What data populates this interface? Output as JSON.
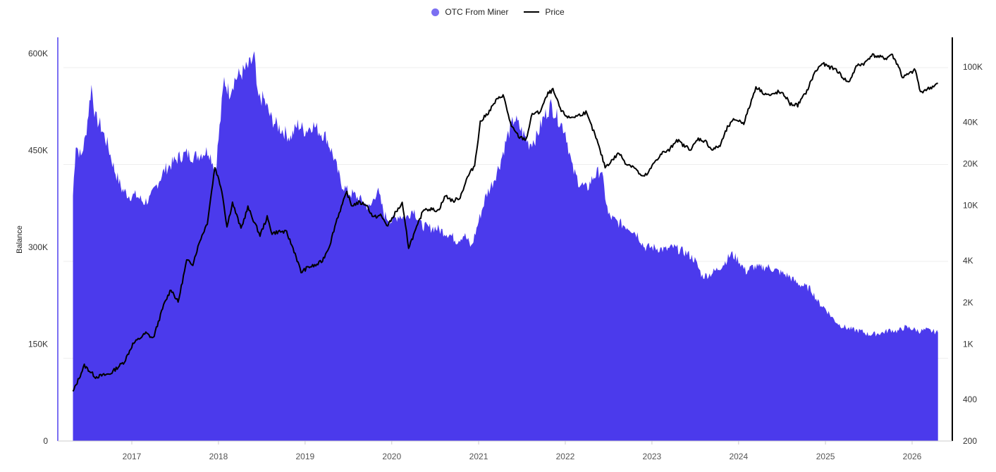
{
  "legend": {
    "series_1": "OTC From Miner",
    "series_2": "Price"
  },
  "colors": {
    "balance": "#4b3aec",
    "balance_axis": "#7b6ff2",
    "price": "#000000",
    "grid": "#eeeeee"
  },
  "chart_data": {
    "type": "area",
    "ylabel_left": "Balance",
    "ylabel_right": "",
    "x_ticks": [
      "2017",
      "2018",
      "2019",
      "2020",
      "2021",
      "2022",
      "2023",
      "2024",
      "2025",
      "2026"
    ],
    "y_left_ticks": [
      "0",
      "150K",
      "300K",
      "450K",
      "600K"
    ],
    "y_left_lim": [
      0,
      600000
    ],
    "y_right_ticks": [
      "200",
      "400",
      "1K",
      "2K",
      "4K",
      "10K",
      "20K",
      "40K",
      "100K"
    ],
    "y_right_scale": "log",
    "y_right_lim": [
      200,
      150000
    ],
    "grid": true,
    "legend_position": "top-center",
    "series": [
      {
        "name": "OTC From Miner",
        "axis": "left",
        "type": "area",
        "points": [
          [
            "2016-04-28",
            380000
          ],
          [
            "2016-05-10",
            460000
          ],
          [
            "2016-06-01",
            440000
          ],
          [
            "2016-06-20",
            470000
          ],
          [
            "2016-07-15",
            550000
          ],
          [
            "2016-08-01",
            500000
          ],
          [
            "2016-08-20",
            490000
          ],
          [
            "2016-09-20",
            460000
          ],
          [
            "2016-10-20",
            420000
          ],
          [
            "2016-11-20",
            390000
          ],
          [
            "2016-12-20",
            380000
          ],
          [
            "2017-01-20",
            380000
          ],
          [
            "2017-02-20",
            370000
          ],
          [
            "2017-03-20",
            375000
          ],
          [
            "2017-04-20",
            400000
          ],
          [
            "2017-05-20",
            420000
          ],
          [
            "2017-06-20",
            430000
          ],
          [
            "2017-07-20",
            440000
          ],
          [
            "2017-08-20",
            445000
          ],
          [
            "2017-09-20",
            440000
          ],
          [
            "2017-10-20",
            445000
          ],
          [
            "2017-11-20",
            450000
          ],
          [
            "2017-12-20",
            420000
          ],
          [
            "2018-01-10",
            500000
          ],
          [
            "2018-01-25",
            560000
          ],
          [
            "2018-02-15",
            540000
          ],
          [
            "2018-03-10",
            560000
          ],
          [
            "2018-04-10",
            570000
          ],
          [
            "2018-05-10",
            580000
          ],
          [
            "2018-06-01",
            595000
          ],
          [
            "2018-06-15",
            530000
          ],
          [
            "2018-07-10",
            530000
          ],
          [
            "2018-08-10",
            500000
          ],
          [
            "2018-09-01",
            490000
          ],
          [
            "2018-10-01",
            480000
          ],
          [
            "2018-11-01",
            470000
          ],
          [
            "2018-12-01",
            490000
          ],
          [
            "2019-01-01",
            480000
          ],
          [
            "2019-02-01",
            490000
          ],
          [
            "2019-03-01",
            480000
          ],
          [
            "2019-04-01",
            470000
          ],
          [
            "2019-05-01",
            440000
          ],
          [
            "2019-06-01",
            400000
          ],
          [
            "2019-07-01",
            385000
          ],
          [
            "2019-08-01",
            380000
          ],
          [
            "2019-09-01",
            370000
          ],
          [
            "2019-10-01",
            360000
          ],
          [
            "2019-11-01",
            390000
          ],
          [
            "2019-12-01",
            350000
          ],
          [
            "2020-01-01",
            340000
          ],
          [
            "2020-02-01",
            350000
          ],
          [
            "2020-03-01",
            345000
          ],
          [
            "2020-04-01",
            360000
          ],
          [
            "2020-05-01",
            335000
          ],
          [
            "2020-06-01",
            330000
          ],
          [
            "2020-07-01",
            330000
          ],
          [
            "2020-08-01",
            325000
          ],
          [
            "2020-09-01",
            320000
          ],
          [
            "2020-10-01",
            310000
          ],
          [
            "2020-11-01",
            320000
          ],
          [
            "2020-12-01",
            300000
          ],
          [
            "2021-01-01",
            340000
          ],
          [
            "2021-02-01",
            380000
          ],
          [
            "2021-03-01",
            400000
          ],
          [
            "2021-04-01",
            430000
          ],
          [
            "2021-05-01",
            470000
          ],
          [
            "2021-06-01",
            500000
          ],
          [
            "2021-07-01",
            480000
          ],
          [
            "2021-08-01",
            460000
          ],
          [
            "2021-09-01",
            470000
          ],
          [
            "2021-10-01",
            500000
          ],
          [
            "2021-11-01",
            520000
          ],
          [
            "2021-12-01",
            500000
          ],
          [
            "2022-01-01",
            480000
          ],
          [
            "2022-02-01",
            420000
          ],
          [
            "2022-03-01",
            400000
          ],
          [
            "2022-04-01",
            390000
          ],
          [
            "2022-05-01",
            410000
          ],
          [
            "2022-06-01",
            420000
          ],
          [
            "2022-07-01",
            350000
          ],
          [
            "2022-08-01",
            340000
          ],
          [
            "2022-09-01",
            335000
          ],
          [
            "2022-10-01",
            330000
          ],
          [
            "2022-11-01",
            320000
          ],
          [
            "2022-12-01",
            300000
          ],
          [
            "2023-01-01",
            300000
          ],
          [
            "2023-02-01",
            298000
          ],
          [
            "2023-03-01",
            296000
          ],
          [
            "2023-04-01",
            300000
          ],
          [
            "2023-05-01",
            295000
          ],
          [
            "2023-06-01",
            290000
          ],
          [
            "2023-07-01",
            280000
          ],
          [
            "2023-08-01",
            255000
          ],
          [
            "2023-09-01",
            258000
          ],
          [
            "2023-10-01",
            265000
          ],
          [
            "2023-11-01",
            275000
          ],
          [
            "2023-12-01",
            290000
          ],
          [
            "2024-01-01",
            280000
          ],
          [
            "2024-02-01",
            262000
          ],
          [
            "2024-03-01",
            270000
          ],
          [
            "2024-04-01",
            268000
          ],
          [
            "2024-05-01",
            270000
          ],
          [
            "2024-06-01",
            265000
          ],
          [
            "2024-07-01",
            260000
          ],
          [
            "2024-08-01",
            255000
          ],
          [
            "2024-09-01",
            245000
          ],
          [
            "2024-10-01",
            240000
          ],
          [
            "2024-11-01",
            235000
          ],
          [
            "2024-12-01",
            215000
          ],
          [
            "2025-01-01",
            205000
          ],
          [
            "2025-02-01",
            190000
          ],
          [
            "2025-03-01",
            180000
          ],
          [
            "2025-04-01",
            175000
          ],
          [
            "2025-05-01",
            172000
          ],
          [
            "2025-06-01",
            170000
          ],
          [
            "2025-07-01",
            165000
          ],
          [
            "2025-08-01",
            166000
          ],
          [
            "2025-09-01",
            168000
          ],
          [
            "2025-10-01",
            172000
          ],
          [
            "2025-11-01",
            170000
          ],
          [
            "2025-12-01",
            176000
          ],
          [
            "2026-01-01",
            174000
          ],
          [
            "2026-02-01",
            170000
          ],
          [
            "2026-03-01",
            172000
          ],
          [
            "2026-04-20",
            168000
          ]
        ]
      },
      {
        "name": "Price",
        "axis": "right",
        "type": "line",
        "points": [
          [
            "2016-04-28",
            450
          ],
          [
            "2016-06-15",
            700
          ],
          [
            "2016-08-01",
            580
          ],
          [
            "2016-10-01",
            610
          ],
          [
            "2016-12-01",
            750
          ],
          [
            "2017-01-05",
            1000
          ],
          [
            "2017-03-01",
            1200
          ],
          [
            "2017-04-01",
            1100
          ],
          [
            "2017-05-15",
            1900
          ],
          [
            "2017-06-15",
            2500
          ],
          [
            "2017-07-15",
            2000
          ],
          [
            "2017-08-20",
            4000
          ],
          [
            "2017-09-15",
            3800
          ],
          [
            "2017-10-15",
            5600
          ],
          [
            "2017-11-15",
            7500
          ],
          [
            "2017-12-17",
            19000
          ],
          [
            "2018-01-15",
            13000
          ],
          [
            "2018-02-06",
            7000
          ],
          [
            "2018-03-01",
            10500
          ],
          [
            "2018-04-06",
            6800
          ],
          [
            "2018-05-05",
            9700
          ],
          [
            "2018-06-25",
            6100
          ],
          [
            "2018-07-25",
            8200
          ],
          [
            "2018-08-15",
            6300
          ],
          [
            "2018-09-15",
            6500
          ],
          [
            "2018-10-15",
            6400
          ],
          [
            "2018-11-20",
            4500
          ],
          [
            "2018-12-15",
            3300
          ],
          [
            "2019-01-15",
            3600
          ],
          [
            "2019-02-15",
            3700
          ],
          [
            "2019-03-15",
            4000
          ],
          [
            "2019-04-15",
            5200
          ],
          [
            "2019-05-15",
            8000
          ],
          [
            "2019-06-26",
            12500
          ],
          [
            "2019-07-15",
            10000
          ],
          [
            "2019-08-15",
            10500
          ],
          [
            "2019-09-15",
            10200
          ],
          [
            "2019-10-15",
            8200
          ],
          [
            "2019-11-15",
            8500
          ],
          [
            "2019-12-15",
            7100
          ],
          [
            "2020-01-15",
            8800
          ],
          [
            "2020-02-14",
            10300
          ],
          [
            "2020-03-12",
            5000
          ],
          [
            "2020-04-15",
            6900
          ],
          [
            "2020-05-15",
            9500
          ],
          [
            "2020-06-15",
            9400
          ],
          [
            "2020-07-15",
            9200
          ],
          [
            "2020-08-15",
            11800
          ],
          [
            "2020-09-15",
            10700
          ],
          [
            "2020-10-15",
            11500
          ],
          [
            "2020-11-15",
            16000
          ],
          [
            "2020-12-15",
            19500
          ],
          [
            "2021-01-08",
            40000
          ],
          [
            "2021-02-15",
            48000
          ],
          [
            "2021-03-15",
            57000
          ],
          [
            "2021-04-14",
            63000
          ],
          [
            "2021-05-19",
            37000
          ],
          [
            "2021-06-22",
            31000
          ],
          [
            "2021-07-20",
            30000
          ],
          [
            "2021-08-15",
            46000
          ],
          [
            "2021-09-15",
            47000
          ],
          [
            "2021-10-20",
            64000
          ],
          [
            "2021-11-10",
            68000
          ],
          [
            "2021-12-15",
            48000
          ],
          [
            "2022-01-15",
            43000
          ],
          [
            "2022-02-15",
            44000
          ],
          [
            "2022-03-29",
            47000
          ],
          [
            "2022-05-10",
            31000
          ],
          [
            "2022-06-18",
            19000
          ],
          [
            "2022-07-15",
            21000
          ],
          [
            "2022-08-15",
            24000
          ],
          [
            "2022-09-15",
            20000
          ],
          [
            "2022-10-15",
            19200
          ],
          [
            "2022-11-21",
            16000
          ],
          [
            "2022-12-15",
            17000
          ],
          [
            "2023-01-15",
            21000
          ],
          [
            "2023-02-15",
            24000
          ],
          [
            "2023-03-15",
            25000
          ],
          [
            "2023-04-15",
            30000
          ],
          [
            "2023-05-15",
            27000
          ],
          [
            "2023-06-15",
            25500
          ],
          [
            "2023-07-15",
            30300
          ],
          [
            "2023-08-15",
            29000
          ],
          [
            "2023-09-11",
            25200
          ],
          [
            "2023-10-15",
            27000
          ],
          [
            "2023-11-15",
            36500
          ],
          [
            "2023-12-15",
            42000
          ],
          [
            "2024-01-23",
            39500
          ],
          [
            "2024-02-15",
            51000
          ],
          [
            "2024-03-14",
            72000
          ],
          [
            "2024-04-15",
            65000
          ],
          [
            "2024-05-15",
            62000
          ],
          [
            "2024-06-15",
            66000
          ],
          [
            "2024-07-15",
            62000
          ],
          [
            "2024-08-05",
            54000
          ],
          [
            "2024-09-06",
            53000
          ],
          [
            "2024-10-15",
            67000
          ],
          [
            "2024-11-15",
            90000
          ],
          [
            "2024-12-17",
            106000
          ],
          [
            "2025-01-15",
            100000
          ],
          [
            "2025-02-15",
            96000
          ],
          [
            "2025-03-15",
            84000
          ],
          [
            "2025-04-08",
            77000
          ],
          [
            "2025-05-15",
            103000
          ],
          [
            "2025-06-15",
            106000
          ],
          [
            "2025-07-14",
            122000
          ],
          [
            "2025-08-15",
            118000
          ],
          [
            "2025-09-15",
            115000
          ],
          [
            "2025-10-06",
            124000
          ],
          [
            "2025-11-05",
            101000
          ],
          [
            "2025-11-21",
            84000
          ],
          [
            "2025-12-15",
            88000
          ],
          [
            "2026-01-15",
            95000
          ],
          [
            "2026-02-05",
            65000
          ],
          [
            "2026-02-20",
            68000
          ],
          [
            "2026-03-15",
            70000
          ],
          [
            "2026-04-20",
            76000
          ]
        ]
      }
    ]
  }
}
